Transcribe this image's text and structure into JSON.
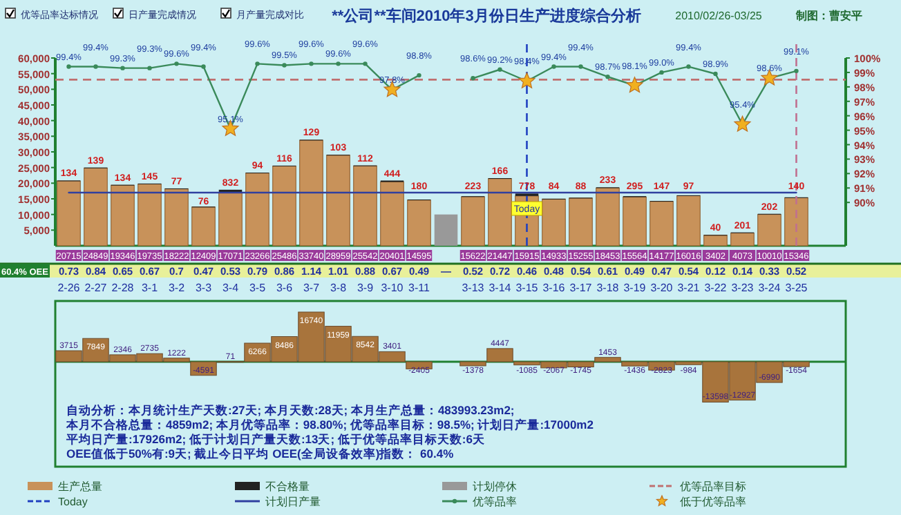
{
  "chart_data": [
    {
      "type": "bar",
      "title": "**公司**车间2010年3月份日生产进度综合分析",
      "subtitle": "2010/02/26-03/25",
      "annotations": [
        "优等品率达标情况",
        "日产量完成情况",
        "月产量完成对比",
        "制图：曹安平",
        "60.4% OEE",
        "0.73",
        "0.84",
        "0.65",
        "0.67",
        "0.7",
        "0.47",
        "0.53",
        "0.79",
        "0.86",
        "1.14",
        "1.01",
        "0.88",
        "0.67",
        "0.49",
        "—",
        "0.52",
        "0.72",
        "0.46",
        "0.48",
        "0.54",
        "0.61",
        "0.49",
        "0.47",
        "0.54",
        "0.12",
        "0.14",
        "0.33",
        "0.52"
      ],
      "categories": [
        "2-26",
        "2-27",
        "2-28",
        "3-1",
        "3-2",
        "3-3",
        "3-4",
        "3-5",
        "3-6",
        "3-7",
        "3-8",
        "3-9",
        "3-10",
        "3-11",
        null,
        "3-13",
        "3-14",
        "3-15",
        "3-16",
        "3-17",
        "3-18",
        "3-19",
        "3-20",
        "3-21",
        "3-22",
        "3-23",
        "3-24",
        "3-25"
      ],
      "stacked": true,
      "series": [
        {
          "name": "生产总量",
          "color": "#c8925a",
          "values": [
            20715,
            24849,
            19346,
            19735,
            18222,
            12409,
            17071,
            23266,
            25486,
            33740,
            28959,
            25542,
            20401,
            14595,
            null,
            15622,
            21447,
            15915,
            14933,
            15255,
            18453,
            15564,
            14177,
            16016,
            3402,
            4073,
            10010,
            15346
          ],
          "value_labels": [
            "20715",
            "24849",
            "19346",
            "19735",
            "18222",
            "12409",
            "17071",
            "23266",
            "25486",
            "33740",
            "28959",
            "25542",
            "20401",
            "14595",
            null,
            "15622",
            "21447",
            "15915",
            "14933",
            "15255",
            "18453",
            "15564",
            "14177",
            "16016",
            "3402",
            "4073",
            "10010",
            "15346"
          ]
        },
        {
          "name": "不合格量",
          "color": "#222222",
          "values": [
            134,
            139,
            134,
            145,
            77,
            76,
            832,
            94,
            116,
            129,
            103,
            112,
            444,
            180,
            null,
            223,
            166,
            778,
            84,
            88,
            233,
            295,
            147,
            97,
            40,
            201,
            202,
            140
          ],
          "value_labels": [
            "134",
            "139",
            "134",
            "145",
            "77",
            "76",
            "832",
            "94",
            "116",
            "129",
            "103",
            "112",
            "444",
            "180",
            null,
            "223",
            "166",
            "778",
            "84",
            "88",
            "233",
            "295",
            "147",
            "97",
            "40",
            "201",
            "202",
            "140"
          ]
        },
        {
          "name": "计划停休",
          "color": "#999999",
          "values": [
            null,
            null,
            null,
            null,
            null,
            null,
            null,
            null,
            null,
            null,
            null,
            null,
            null,
            null,
            10000,
            null,
            null,
            null,
            null,
            null,
            null,
            null,
            null,
            null,
            null,
            null,
            null,
            null
          ]
        },
        {
          "name": "计划日产量",
          "type": "line",
          "color": "#3040a0",
          "values": [
            17000,
            17000,
            17000,
            17000,
            17000,
            17000,
            17000,
            17000,
            17000,
            17000,
            17000,
            17000,
            17000,
            17000,
            17000,
            17000,
            17000,
            17000,
            17000,
            17000,
            17000,
            17000,
            17000,
            17000,
            17000,
            17000,
            17000,
            17000
          ]
        },
        {
          "name": "优等品率",
          "type": "line",
          "axis": "y2",
          "marker": "circle",
          "color": "#3a8a5a",
          "values": [
            99.4,
            99.4,
            99.3,
            99.3,
            99.6,
            99.4,
            95.1,
            99.6,
            99.5,
            99.6,
            99.6,
            99.6,
            97.8,
            98.8,
            null,
            98.6,
            99.2,
            98.4,
            99.4,
            99.4,
            98.7,
            98.1,
            99.0,
            99.4,
            98.9,
            95.4,
            98.6,
            99.1
          ],
          "value_labels": [
            "99.4%",
            "99.4%",
            "99.3%",
            "99.3%",
            "99.6%",
            "99.4%",
            "95.1%",
            "99.6%",
            "99.5%",
            "99.6%",
            "99.6%",
            "99.6%",
            "97.8%",
            "98.8%",
            null,
            "98.6%",
            "99.2%",
            "98.4%",
            "99.4%",
            "99.4%",
            "98.7%",
            "98.1%",
            "99.0%",
            "99.4%",
            "98.9%",
            "95.4%",
            "98.6%",
            "99.1%"
          ]
        },
        {
          "name": "低于优等品率",
          "type": "scatter",
          "axis": "y2",
          "marker": "star",
          "color": "#f0b020",
          "values": [
            null,
            null,
            null,
            null,
            null,
            null,
            95.1,
            null,
            null,
            null,
            null,
            null,
            97.8,
            null,
            null,
            null,
            null,
            98.4,
            null,
            null,
            null,
            98.1,
            null,
            null,
            null,
            95.4,
            98.6,
            null
          ]
        }
      ],
      "ylim": [
        0,
        60000
      ],
      "yticks": [
        {
          "value": 5000,
          "label": "5,000"
        },
        {
          "value": 10000,
          "label": "10,000"
        },
        {
          "value": 15000,
          "label": "15,000"
        },
        {
          "value": 20000,
          "label": "20,000"
        },
        {
          "value": 25000,
          "label": "25,000"
        },
        {
          "value": 30000,
          "label": "30,000"
        },
        {
          "value": 35000,
          "label": "35,000"
        },
        {
          "value": 40000,
          "label": "40,000"
        },
        {
          "value": 45000,
          "label": "45,000"
        },
        {
          "value": 50000,
          "label": "50,000"
        },
        {
          "value": 55000,
          "label": "55,000"
        },
        {
          "value": 60000,
          "label": "60,000"
        }
      ],
      "y2lim": [
        87,
        100
      ],
      "y2ticks": [
        {
          "value": 90,
          "label": "90%"
        },
        {
          "value": 91,
          "label": "91%"
        },
        {
          "value": 92,
          "label": "92%"
        },
        {
          "value": 93,
          "label": "93%"
        },
        {
          "value": 94,
          "label": "94%"
        },
        {
          "value": 95,
          "label": "95%"
        },
        {
          "value": 96,
          "label": "96%"
        },
        {
          "value": 97,
          "label": "97%"
        },
        {
          "value": 98,
          "label": "98%"
        },
        {
          "value": 99,
          "label": "99%"
        },
        {
          "value": 100,
          "label": "100%"
        }
      ],
      "ref_lines": [
        {
          "axis": "y2",
          "value": 98.5,
          "label": "优等品率目标",
          "color": "#c07070",
          "line_style": "dashed"
        },
        {
          "axis": "x",
          "value": "3-15",
          "label": "Today",
          "color": "#2040c0",
          "line_style": "dashed"
        },
        {
          "axis": "x",
          "value": "3-25",
          "color": "#c07090",
          "line_style": "dashed"
        }
      ],
      "legend": "bottom",
      "grid": false
    },
    {
      "type": "bar",
      "series": [
        {
          "color": "#a8743c",
          "values": [
            3715,
            7849,
            2346,
            2735,
            1222,
            -4591,
            71,
            6266,
            8486,
            16740,
            11959,
            8542,
            3401,
            -2405,
            null,
            -1378,
            4447,
            -1085,
            -2067,
            -1745,
            1453,
            -1436,
            -2823,
            -984,
            -13598,
            -12927,
            -6990,
            -1654
          ]
        }
      ],
      "data_labels": true,
      "ref_lines": [
        {
          "axis": "y",
          "value": 0,
          "color": "#208030"
        }
      ],
      "annotations": [
        "自动分析：本月统计生产天数:27天;    本月天数:28天;    本月生产总量：483993.23m2;",
        "本月不合格总量：4859m2;  本月优等品率：98.80%;  优等品率目标：98.5%;  计划日产量:17000m2",
        "平均日产量:17926m2;    低于计划日产量天数:13天;    低于优等品率目标天数:6天",
        "OEE值低于50%有:9天;    截止今日平均 OEE(全局设备效率)指数：  60.4%"
      ]
    }
  ]
}
